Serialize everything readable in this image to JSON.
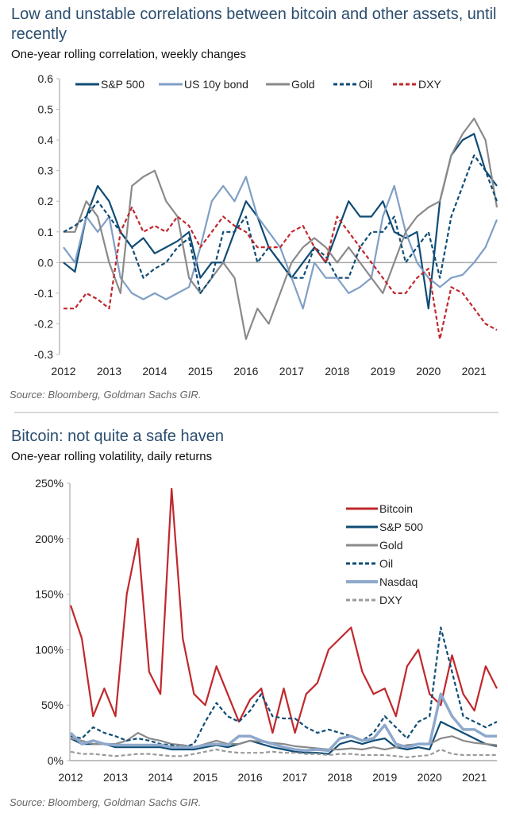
{
  "chart_data": [
    {
      "type": "line",
      "title": "Low and unstable correlations between bitcoin and other assets, until recently",
      "subtitle": "One-year rolling correlation, weekly changes",
      "source": "Source: Bloomberg, Goldman Sachs GIR.",
      "xlabel": "",
      "ylabel": "",
      "xlim": [
        2012,
        2021.5
      ],
      "ylim": [
        -0.3,
        0.6
      ],
      "x_ticks": [
        "2012",
        "2013",
        "2014",
        "2015",
        "2016",
        "2017",
        "2018",
        "2019",
        "2020",
        "2021"
      ],
      "y_ticks": [
        "0.6",
        "0.5",
        "0.4",
        "0.3",
        "0.2",
        "0.1",
        "0.0",
        "-0.1",
        "-0.2",
        "-0.3"
      ],
      "legend": "top",
      "grid": false,
      "x": [
        2012,
        2012.25,
        2012.5,
        2012.75,
        2013,
        2013.25,
        2013.5,
        2013.75,
        2014,
        2014.25,
        2014.5,
        2014.75,
        2015,
        2015.25,
        2015.5,
        2015.75,
        2016,
        2016.25,
        2016.5,
        2016.75,
        2017,
        2017.25,
        2017.5,
        2017.75,
        2018,
        2018.25,
        2018.5,
        2018.75,
        2019,
        2019.25,
        2019.5,
        2019.75,
        2020,
        2020.25,
        2020.5,
        2020.75,
        2021,
        2021.25,
        2021.5
      ],
      "series": [
        {
          "name": "S&P 500",
          "color": "#0f4c75",
          "style": "solid",
          "values": [
            0.0,
            -0.03,
            0.15,
            0.25,
            0.2,
            0.1,
            0.05,
            0.08,
            0.03,
            0.05,
            0.07,
            0.1,
            -0.05,
            0.0,
            0.0,
            0.1,
            0.2,
            0.15,
            0.05,
            0.0,
            -0.05,
            0.0,
            0.05,
            0.0,
            0.1,
            0.2,
            0.15,
            0.15,
            0.2,
            0.1,
            0.08,
            0.1,
            -0.15,
            0.2,
            0.35,
            0.4,
            0.42,
            0.3,
            0.25
          ]
        },
        {
          "name": "US 10y bond",
          "color": "#7f9fc6",
          "style": "solid",
          "values": [
            0.05,
            0.0,
            0.15,
            0.1,
            0.15,
            -0.05,
            -0.1,
            -0.12,
            -0.1,
            -0.12,
            -0.1,
            -0.08,
            0.05,
            0.2,
            0.25,
            0.2,
            0.28,
            0.15,
            0.1,
            0.05,
            -0.05,
            -0.15,
            0.0,
            -0.05,
            -0.05,
            -0.1,
            -0.08,
            -0.05,
            0.15,
            0.25,
            0.1,
            0.0,
            -0.05,
            -0.08,
            -0.05,
            -0.04,
            0.0,
            0.05,
            0.14
          ]
        },
        {
          "name": "Gold",
          "color": "#8a8a8a",
          "style": "solid",
          "values": [
            0.1,
            0.1,
            0.2,
            0.15,
            0.0,
            -0.1,
            0.25,
            0.28,
            0.3,
            0.2,
            0.15,
            -0.05,
            -0.1,
            -0.05,
            0.0,
            -0.05,
            -0.25,
            -0.15,
            -0.2,
            -0.1,
            0.0,
            0.05,
            0.08,
            0.05,
            0.0,
            0.05,
            0.0,
            -0.05,
            -0.1,
            0.0,
            0.1,
            0.15,
            0.18,
            0.2,
            0.35,
            0.42,
            0.47,
            0.4,
            0.18
          ]
        },
        {
          "name": "Oil",
          "color": "#0f4c75",
          "style": "dashed",
          "values": [
            0.1,
            0.12,
            0.15,
            0.2,
            0.15,
            0.1,
            0.05,
            -0.05,
            -0.02,
            0.0,
            0.05,
            0.08,
            -0.1,
            -0.05,
            0.1,
            0.1,
            0.15,
            0.0,
            0.05,
            0.0,
            -0.05,
            -0.05,
            0.05,
            0.02,
            -0.05,
            -0.05,
            0.05,
            0.1,
            0.1,
            0.15,
            0.0,
            0.05,
            0.1,
            -0.05,
            0.15,
            0.25,
            0.35,
            0.3,
            0.2
          ]
        },
        {
          "name": "DXY",
          "color": "#c0282d",
          "style": "dashed",
          "values": [
            -0.15,
            -0.15,
            -0.1,
            -0.12,
            -0.15,
            0.1,
            0.18,
            0.1,
            0.12,
            0.1,
            0.15,
            0.12,
            0.05,
            0.1,
            0.15,
            0.12,
            0.1,
            0.05,
            0.05,
            0.05,
            0.1,
            0.12,
            0.05,
            0.0,
            0.15,
            0.1,
            0.05,
            0.0,
            -0.05,
            -0.1,
            -0.1,
            -0.05,
            -0.02,
            -0.25,
            -0.08,
            -0.1,
            -0.15,
            -0.2,
            -0.22
          ]
        }
      ]
    },
    {
      "type": "line",
      "title": "Bitcoin: not quite a safe haven",
      "subtitle": "One-year rolling volatility, daily returns",
      "source": "Source: Bloomberg, Goldman Sachs GIR.",
      "xlabel": "",
      "ylabel": "",
      "xlim": [
        2012,
        2021.5
      ],
      "ylim": [
        0,
        250
      ],
      "x_ticks": [
        "2012",
        "2013",
        "2014",
        "2015",
        "2016",
        "2017",
        "2018",
        "2019",
        "2020",
        "2021"
      ],
      "y_ticks": [
        "250%",
        "200%",
        "150%",
        "100%",
        "50%",
        "0%"
      ],
      "legend": "top-right",
      "grid": false,
      "x": [
        2012,
        2012.25,
        2012.5,
        2012.75,
        2013,
        2013.25,
        2013.5,
        2013.75,
        2014,
        2014.25,
        2014.5,
        2014.75,
        2015,
        2015.25,
        2015.5,
        2015.75,
        2016,
        2016.25,
        2016.5,
        2016.75,
        2017,
        2017.25,
        2017.5,
        2017.75,
        2018,
        2018.25,
        2018.5,
        2018.75,
        2019,
        2019.25,
        2019.5,
        2019.75,
        2020,
        2020.25,
        2020.5,
        2020.75,
        2021,
        2021.25,
        2021.5
      ],
      "series": [
        {
          "name": "Bitcoin",
          "color": "#c0282d",
          "style": "solid",
          "values": [
            140,
            110,
            40,
            65,
            40,
            150,
            200,
            80,
            60,
            245,
            110,
            60,
            50,
            85,
            60,
            35,
            55,
            65,
            25,
            65,
            25,
            60,
            70,
            100,
            110,
            120,
            80,
            60,
            65,
            40,
            85,
            100,
            60,
            50,
            95,
            60,
            45,
            85,
            65
          ]
        },
        {
          "name": "S&P 500",
          "color": "#0f4c75",
          "style": "solid",
          "values": [
            20,
            15,
            15,
            15,
            12,
            12,
            12,
            12,
            12,
            10,
            10,
            10,
            12,
            14,
            12,
            15,
            18,
            15,
            12,
            10,
            8,
            7,
            7,
            6,
            15,
            18,
            15,
            18,
            20,
            12,
            10,
            12,
            10,
            35,
            30,
            25,
            20,
            15,
            13
          ]
        },
        {
          "name": "Gold",
          "color": "#8a8a8a",
          "style": "solid",
          "values": [
            20,
            18,
            15,
            15,
            15,
            18,
            25,
            20,
            18,
            15,
            14,
            12,
            15,
            18,
            15,
            15,
            18,
            17,
            16,
            15,
            13,
            12,
            11,
            10,
            10,
            11,
            10,
            12,
            10,
            12,
            14,
            15,
            15,
            20,
            22,
            18,
            16,
            15,
            14
          ]
        },
        {
          "name": "Oil",
          "color": "#0f4c75",
          "style": "dashed",
          "values": [
            22,
            20,
            30,
            25,
            22,
            18,
            20,
            18,
            15,
            14,
            12,
            15,
            35,
            52,
            40,
            35,
            45,
            60,
            40,
            38,
            38,
            30,
            25,
            28,
            25,
            22,
            18,
            25,
            40,
            30,
            20,
            35,
            40,
            120,
            80,
            40,
            35,
            30,
            35
          ]
        },
        {
          "name": "Nasdaq",
          "color": "#8fa9cc",
          "style": "solid",
          "values": [
            25,
            15,
            18,
            15,
            14,
            14,
            14,
            14,
            14,
            12,
            12,
            12,
            14,
            15,
            14,
            22,
            22,
            18,
            15,
            12,
            10,
            9,
            10,
            9,
            20,
            22,
            18,
            20,
            32,
            15,
            12,
            15,
            15,
            60,
            40,
            28,
            28,
            22,
            22
          ]
        },
        {
          "name": "DXY",
          "color": "#9a9a9a",
          "style": "dashed",
          "values": [
            8,
            6,
            6,
            5,
            4,
            5,
            6,
            6,
            5,
            4,
            4,
            6,
            8,
            10,
            8,
            7,
            7,
            7,
            8,
            7,
            7,
            6,
            6,
            5,
            6,
            6,
            5,
            5,
            5,
            4,
            3,
            4,
            5,
            10,
            6,
            5,
            5,
            5,
            5
          ]
        }
      ]
    }
  ]
}
